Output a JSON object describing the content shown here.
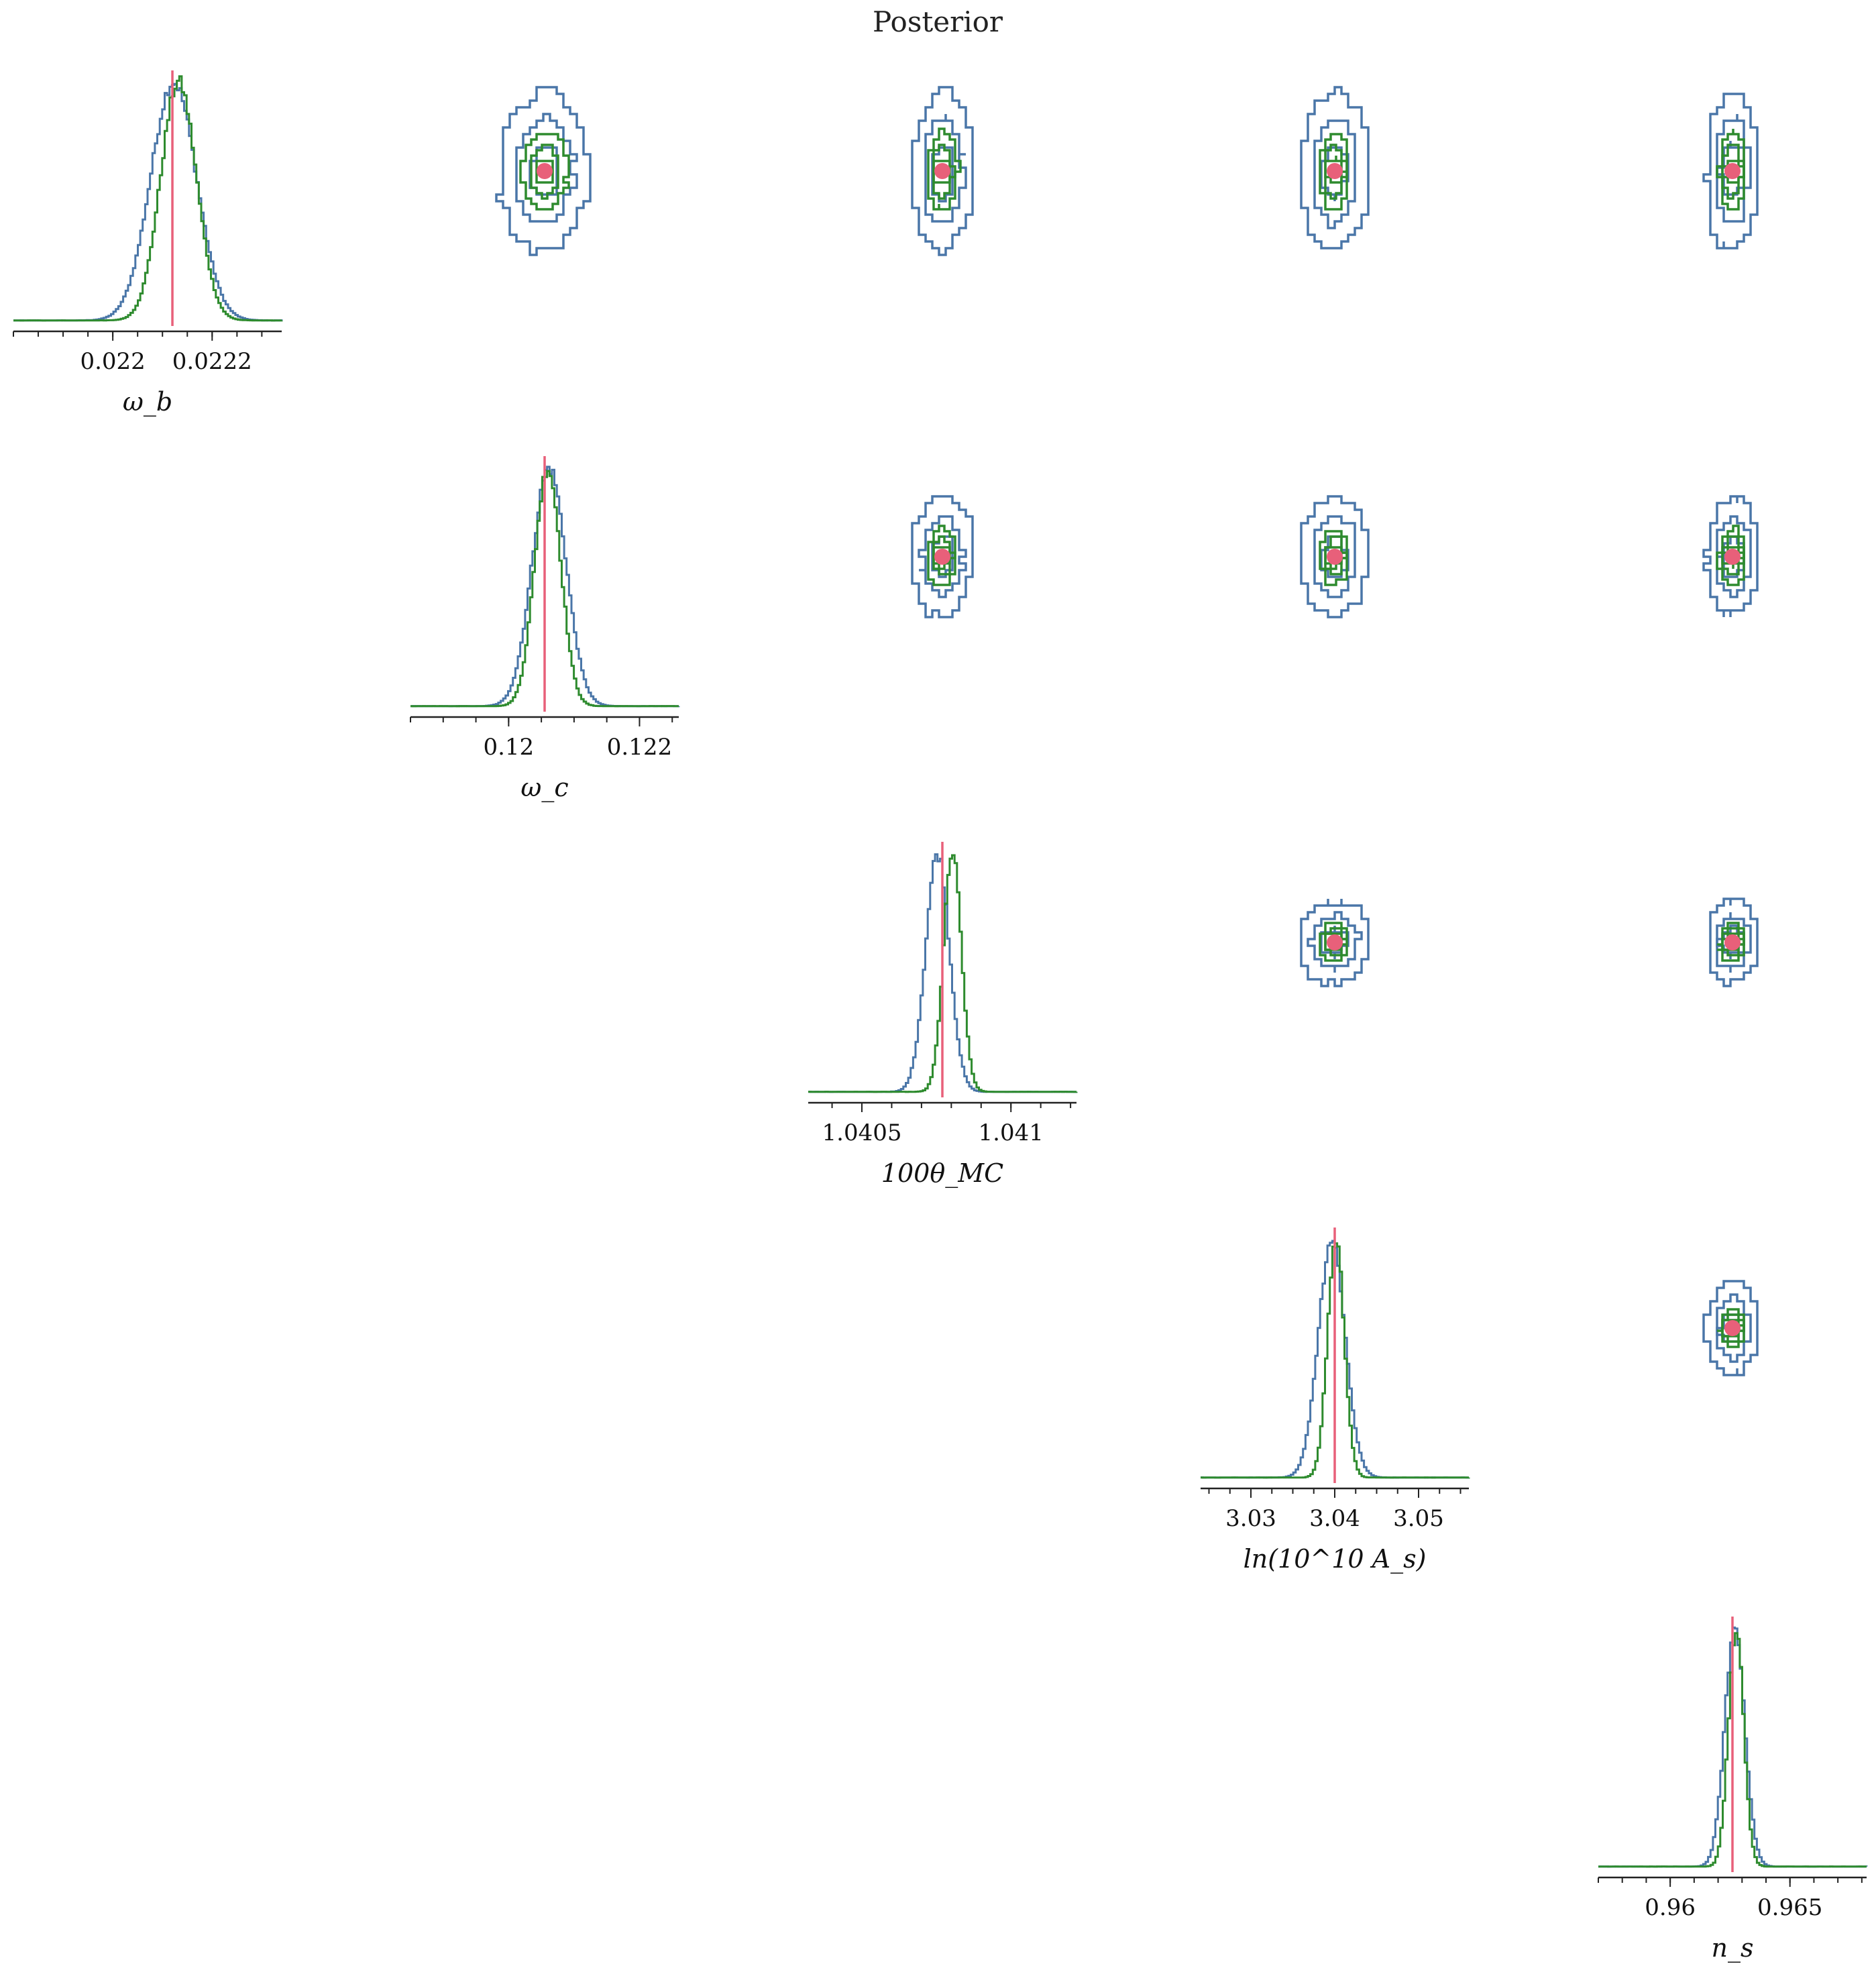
{
  "title": "Posterior",
  "colors": {
    "series_a": "#4a76a8",
    "series_b": "#2e8b2e",
    "truth": "#e8607a"
  },
  "chart_data": {
    "type": "corner",
    "title": "Posterior",
    "grid": false,
    "legend": "none",
    "parameters": [
      {
        "label": "ω_b",
        "truth": 0.02212,
        "range": [
          0.0218,
          0.02234
        ],
        "ticks": [
          0.022,
          0.0222
        ],
        "tick_labels": [
          "0.022",
          "0.0222"
        ],
        "minor_step": 5e-05,
        "a": {
          "mean": 0.02212,
          "sigma": 4.6e-05
        },
        "b": {
          "mean": 0.02213,
          "sigma": 3.6e-05
        }
      },
      {
        "label": "ω_c",
        "truth": 0.12055,
        "range": [
          0.1185,
          0.1226
        ],
        "ticks": [
          0.12,
          0.122
        ],
        "tick_labels": [
          "0.12",
          "0.122"
        ],
        "minor_step": 0.0005,
        "a": {
          "mean": 0.1206,
          "sigma": 0.00026
        },
        "b": {
          "mean": 0.12058,
          "sigma": 0.0002
        }
      },
      {
        "label": "100θ_MC",
        "truth": 1.04077,
        "range": [
          1.04032,
          1.04122
        ],
        "ticks": [
          1.0405,
          1.041
        ],
        "tick_labels": [
          "1.0405",
          "1.041"
        ],
        "minor_step": 0.0001,
        "a": {
          "mean": 1.04075,
          "sigma": 4e-05
        },
        "b": {
          "mean": 1.0408,
          "sigma": 3e-05
        }
      },
      {
        "label": "ln(10^10 A_s)",
        "truth": 3.04,
        "range": [
          3.024,
          3.056
        ],
        "ticks": [
          3.03,
          3.04,
          3.05
        ],
        "tick_labels": [
          "3.03",
          "3.04",
          "3.05"
        ],
        "minor_step": 0.0025,
        "a": {
          "mean": 3.0395,
          "sigma": 0.0016
        },
        "b": {
          "mean": 3.04,
          "sigma": 0.001
        }
      },
      {
        "label": "n_s",
        "truth": 0.9626,
        "range": [
          0.957,
          0.9682
        ],
        "ticks": [
          0.96,
          0.965
        ],
        "tick_labels": [
          "0.96",
          "0.965"
        ],
        "minor_step": 0.001,
        "a": {
          "mean": 0.96265,
          "sigma": 0.00042
        },
        "b": {
          "mean": 0.9627,
          "sigma": 0.00032
        }
      }
    ]
  }
}
